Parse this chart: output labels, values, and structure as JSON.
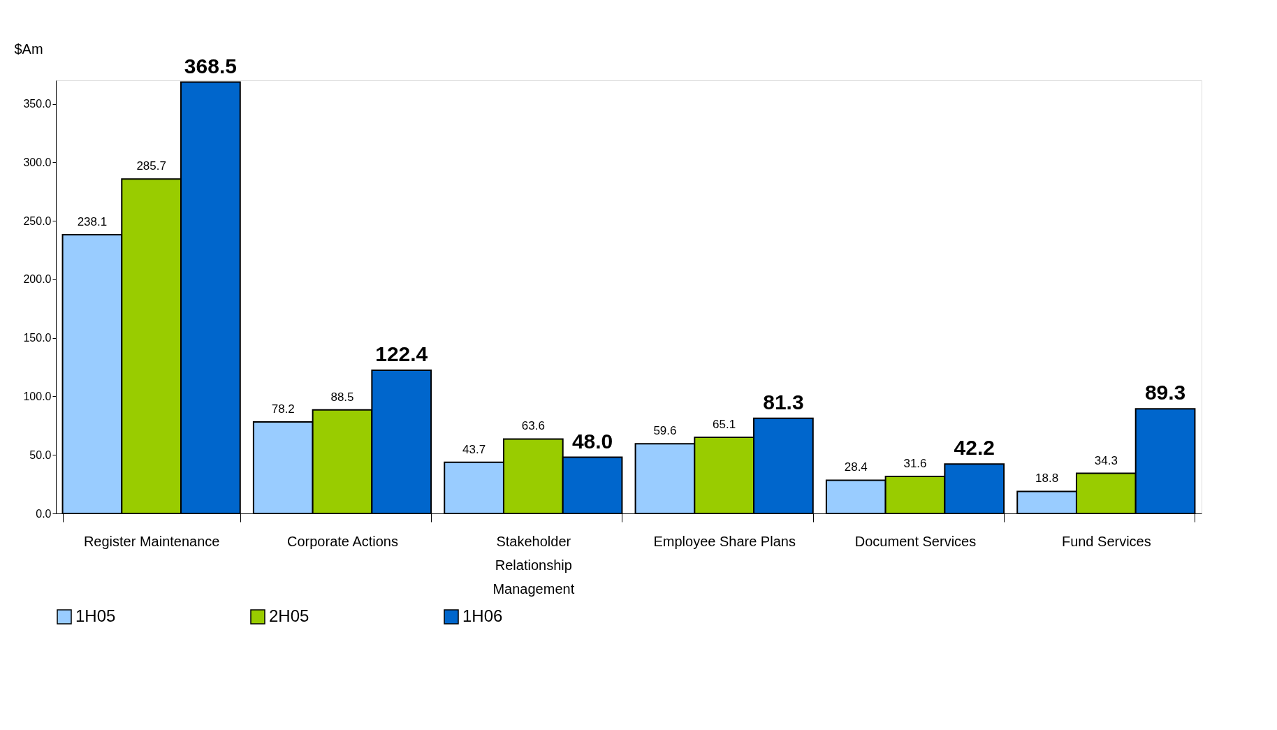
{
  "chart_data": {
    "type": "bar",
    "ylabel": "$Am",
    "categories": [
      "Register Maintenance",
      "Corporate Actions",
      "Stakeholder Relationship Management",
      "Employee Share Plans",
      "Document Services",
      "Fund Services"
    ],
    "series": [
      {
        "name": "1H05",
        "color": "#99ccff",
        "values": [
          238.1,
          78.2,
          43.7,
          59.6,
          28.4,
          18.8
        ]
      },
      {
        "name": "2H05",
        "color": "#99cc00",
        "values": [
          285.7,
          88.5,
          63.6,
          65.1,
          31.6,
          34.3
        ]
      },
      {
        "name": "1H06",
        "color": "#0066cc",
        "values": [
          368.5,
          122.4,
          48.0,
          81.3,
          42.2,
          89.3
        ]
      }
    ],
    "value_labels": [
      [
        "238.1",
        "78.2",
        "43.7",
        "59.6",
        "28.4",
        "18.8"
      ],
      [
        "285.7",
        "88.5",
        "63.6",
        "65.1",
        "31.6",
        "34.3"
      ],
      [
        "368.5",
        "122.4",
        "48.0",
        "81.3",
        "42.2",
        "89.3"
      ]
    ],
    "ylim": [
      0,
      370
    ],
    "yticks": [
      {
        "value": 0,
        "label": "0.0"
      },
      {
        "value": 50,
        "label": "50.0"
      },
      {
        "value": 100,
        "label": "100.0"
      },
      {
        "value": 150,
        "label": "150.0"
      },
      {
        "value": 200,
        "label": "200.0"
      },
      {
        "value": 250,
        "label": "250.0"
      },
      {
        "value": 300,
        "label": "300.0"
      },
      {
        "value": 350,
        "label": "350.0"
      }
    ],
    "grid": false,
    "legend": "bottom"
  }
}
